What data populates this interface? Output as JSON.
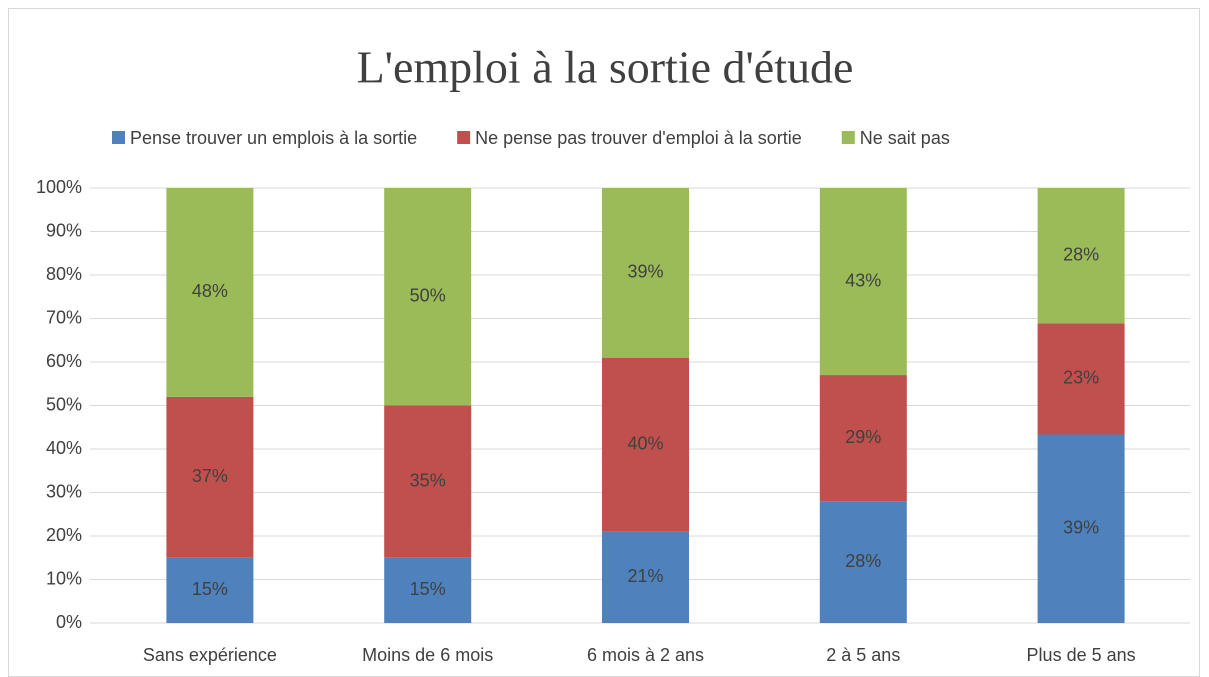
{
  "chart_data": {
    "type": "bar",
    "stacked": "percent",
    "title": "L'emploi à la sortie d'étude",
    "categories": [
      "Sans expérience",
      "Moins de 6 mois",
      "6 mois à 2 ans",
      "2 à 5 ans",
      "Plus de 5 ans"
    ],
    "series": [
      {
        "name": "Pense trouver un emplois à la sortie",
        "color": "#4f81bd",
        "values": [
          15,
          15,
          21,
          28,
          39
        ],
        "value_labels": [
          "15%",
          "15%",
          "21%",
          "28%",
          "39%"
        ]
      },
      {
        "name": "Ne pense pas trouver d'emploi à la sortie",
        "color": "#c0504d",
        "values": [
          37,
          35,
          40,
          29,
          23
        ],
        "value_labels": [
          "37%",
          "35%",
          "40%",
          "29%",
          "23%"
        ]
      },
      {
        "name": "Ne sait pas",
        "color": "#9bbb59",
        "values": [
          48,
          50,
          39,
          43,
          28
        ],
        "value_labels": [
          "48%",
          "50%",
          "39%",
          "43%",
          "28%"
        ]
      }
    ],
    "ylim": [
      0,
      100
    ],
    "yticks": [
      {
        "value": 0,
        "label": "0%"
      },
      {
        "value": 10,
        "label": "10%"
      },
      {
        "value": 20,
        "label": "20%"
      },
      {
        "value": 30,
        "label": "30%"
      },
      {
        "value": 40,
        "label": "40%"
      },
      {
        "value": 50,
        "label": "50%"
      },
      {
        "value": 60,
        "label": "60%"
      },
      {
        "value": 70,
        "label": "70%"
      },
      {
        "value": 80,
        "label": "80%"
      },
      {
        "value": 90,
        "label": "90%"
      },
      {
        "value": 100,
        "label": "100%"
      }
    ],
    "grid": true,
    "legend": "top"
  }
}
